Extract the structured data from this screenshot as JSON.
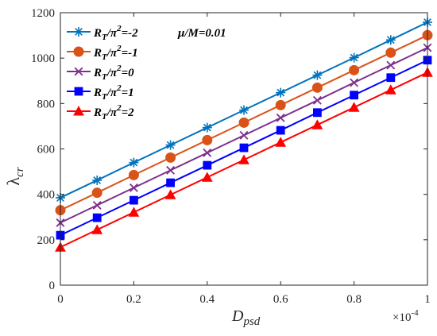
{
  "chart_data": {
    "type": "line",
    "x": [
      0,
      0.1,
      0.2,
      0.3,
      0.4,
      0.5,
      0.6,
      0.7,
      0.8,
      0.9,
      1.0
    ],
    "xlim": [
      0,
      1
    ],
    "ylim": [
      0,
      1200
    ],
    "xticks": [
      "0",
      "0.2",
      "0.4",
      "0.6",
      "0.8",
      "1"
    ],
    "yticks": [
      "0",
      "200",
      "400",
      "600",
      "800",
      "1000",
      "1200"
    ],
    "xlabel": "D",
    "xlabel_sub": "psd",
    "x_multiplier": "×10",
    "x_multiplier_exp": "-4",
    "ylabel": "λ",
    "ylabel_sub": "cr",
    "annotation": "μ/M=0.01",
    "grid": false,
    "legend_position": "top-left",
    "series": [
      {
        "name": "R_T/π²=-2",
        "name_main": "R",
        "name_sub": "T",
        "name_mid": "/π",
        "name_sup": "2",
        "name_tail": "=-2",
        "marker": "asterisk",
        "color": "#0072BD",
        "values": [
          385,
          462,
          540,
          617,
          694,
          771,
          848,
          925,
          1002,
          1080,
          1158
        ]
      },
      {
        "name": "R_T/π²=-1",
        "name_main": "R",
        "name_sub": "T",
        "name_mid": "/π",
        "name_sup": "2",
        "name_tail": "=-1",
        "marker": "circle",
        "color": "#D95319",
        "values": [
          330,
          407,
          485,
          562,
          639,
          716,
          793,
          870,
          947,
          1024,
          1101
        ]
      },
      {
        "name": "R_T/π²=0",
        "name_main": "R",
        "name_sub": "T",
        "name_mid": "/π",
        "name_sup": "2",
        "name_tail": "=0",
        "marker": "x",
        "color": "#7E2F8E",
        "values": [
          275,
          352,
          429,
          506,
          583,
          660,
          737,
          814,
          892,
          969,
          1046
        ]
      },
      {
        "name": "R_T/π²=1",
        "name_main": "R",
        "name_sub": "T",
        "name_mid": "/π",
        "name_sup": "2",
        "name_tail": "=1",
        "marker": "square",
        "color": "#0000FF",
        "values": [
          220,
          297,
          374,
          451,
          528,
          605,
          682,
          760,
          837,
          914,
          991
        ]
      },
      {
        "name": "R_T/π²=2",
        "name_main": "R",
        "name_sub": "T",
        "name_mid": "/π",
        "name_sup": "2",
        "name_tail": "=2",
        "marker": "triangle",
        "color": "#FF0000",
        "values": [
          167,
          244,
          321,
          398,
          475,
          552,
          629,
          706,
          783,
          860,
          937
        ]
      }
    ]
  }
}
